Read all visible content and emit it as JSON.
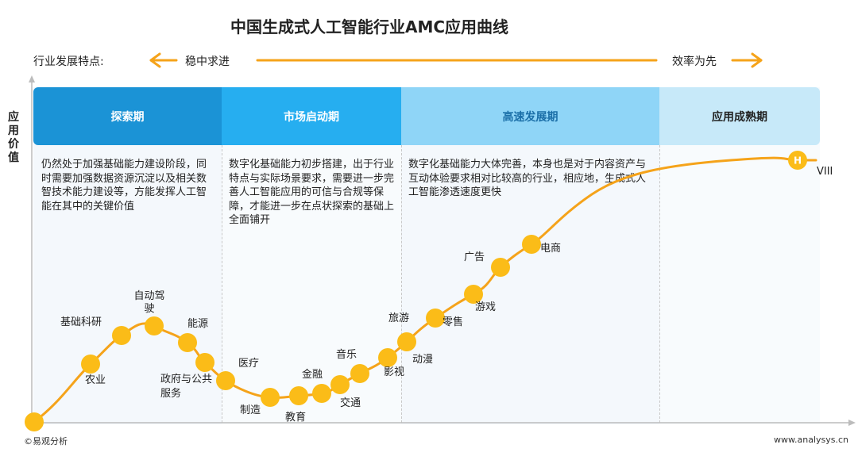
{
  "title": "中国生成式人工智能行业AMC应用曲线",
  "features": {
    "label": "行业发展特点:",
    "left": "稳中求进",
    "right": "效率为先"
  },
  "y_axis_label": "应用价值",
  "stages": [
    {
      "name": "探索期",
      "desc": "仍然处于加强基础能力建设阶段，同时需要加强数据资源沉淀以及相关数智技术能力建设等，方能发挥人工智能在其中的关键价值"
    },
    {
      "name": "市场启动期",
      "desc": "数字化基础能力初步搭建，出于行业特点与实际场景要求，需要进一步完善人工智能应用的可信与合规等保障，才能进一步在点状探索的基础上全面铺开"
    },
    {
      "name": "高速发展期",
      "desc": "数字化基础能力大体完善，本身也是对于内容资产与互动体验要求相对比较高的行业，相应地，生成式人工智能渗透速度更快"
    },
    {
      "name": "应用成熟期",
      "desc": ""
    }
  ],
  "industries": [
    "农业",
    "基础科研",
    "自动驾驶",
    "能源",
    "政府与公共服务",
    "医疗",
    "制造",
    "教育",
    "金融",
    "交通",
    "音乐",
    "影视",
    "动漫",
    "旅游",
    "零售",
    "游戏",
    "广告",
    "电商",
    "VIII"
  ],
  "end_marker": "H",
  "colors": {
    "orange": "#f5a31a",
    "node": "#fbbc18",
    "stage1": "#1b93d6",
    "stage2": "#26aef0",
    "stage3": "#8fd5f7",
    "stage4": "#c7e9f9"
  },
  "footer": {
    "left": "©易观分析",
    "right": "www.analysys.cn"
  }
}
